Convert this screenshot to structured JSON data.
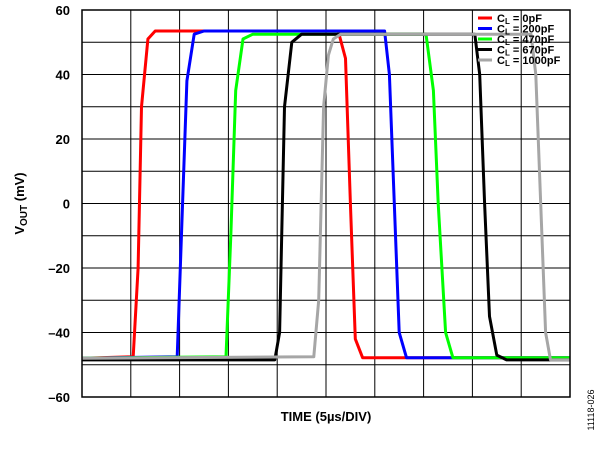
{
  "figure_code": "11118-026",
  "chart_data": {
    "type": "line",
    "title": "",
    "xlabel": "TIME (5µs/DIV)",
    "ylabel_main": "V",
    "ylabel_sub": "OUT",
    "ylabel_unit": " (mV)",
    "ylim": [
      -60,
      60
    ],
    "yticks": [
      60,
      40,
      20,
      0,
      -20,
      -40,
      -60
    ],
    "ytick_labels": [
      "60",
      "40",
      "20",
      "0",
      "–20",
      "–40",
      "–60"
    ],
    "xlim": [
      0,
      10
    ],
    "x_divisions": 10,
    "grid": true,
    "legend_placement": "top-right",
    "x_unit_note": "x values in divisions (5µs/DIV)",
    "series": [
      {
        "name": "C",
        "name_sub": "L",
        "name_rest": " = 0pF",
        "color": "#ff0000",
        "x": [
          0,
          1.05,
          1.15,
          1.22,
          1.35,
          1.5,
          1.7,
          5.25,
          5.4,
          5.5,
          5.6,
          5.75,
          10
        ],
        "y": [
          -48,
          -47.5,
          -20,
          30,
          51,
          53.5,
          53.5,
          53.5,
          45,
          0,
          -42,
          -47.8,
          -47.8
        ]
      },
      {
        "name": "C",
        "name_sub": "L",
        "name_rest": " = 200pF",
        "color": "#0000ff",
        "x": [
          0,
          1.95,
          2.05,
          2.15,
          2.3,
          2.5,
          6.2,
          6.3,
          6.4,
          6.5,
          6.65,
          10
        ],
        "y": [
          -48,
          -47.5,
          -5,
          38,
          52.5,
          53.5,
          53.5,
          40,
          0,
          -40,
          -47.8,
          -47.8
        ]
      },
      {
        "name": "C",
        "name_sub": "L",
        "name_rest": " = 470pF",
        "color": "#00ff00",
        "x": [
          0,
          2.95,
          3.05,
          3.15,
          3.3,
          3.5,
          7.05,
          7.2,
          7.3,
          7.45,
          7.6,
          10
        ],
        "y": [
          -48,
          -47.5,
          -10,
          35,
          51,
          52.5,
          52.5,
          35,
          0,
          -40,
          -47.8,
          -47.8
        ]
      },
      {
        "name": "C",
        "name_sub": "L",
        "name_rest": " = 670pF",
        "color": "#000000",
        "x": [
          0,
          3.95,
          4.05,
          4.15,
          4.3,
          4.5,
          8.05,
          8.15,
          8.25,
          8.35,
          8.5,
          8.7,
          10
        ],
        "y": [
          -48.5,
          -48.5,
          -40,
          30,
          50,
          52.5,
          52.5,
          40,
          0,
          -35,
          -47,
          -48.5,
          -48.5
        ]
      },
      {
        "name": "C",
        "name_sub": "L",
        "name_rest": " = 1000pF",
        "color": "#a6a6a6",
        "x": [
          0,
          4.75,
          4.85,
          4.95,
          5.05,
          5.15,
          5.3,
          9.2,
          9.3,
          9.4,
          9.5,
          9.6,
          10
        ],
        "y": [
          -48,
          -47.5,
          -30,
          30,
          46,
          51,
          52.5,
          52.5,
          40,
          0,
          -40,
          -48.5,
          -48.5
        ]
      }
    ]
  }
}
